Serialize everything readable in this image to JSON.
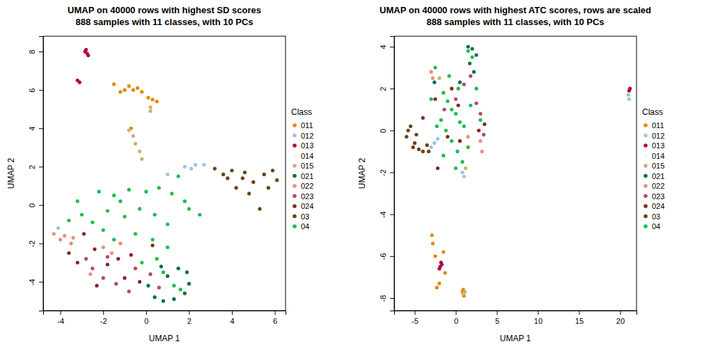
{
  "chart_data": [
    {
      "type": "scatter",
      "title": "UMAP on 40000 rows with highest SD scores",
      "subtitle": "888 samples with 11 classes, with 10 PCs",
      "x_label": "UMAP 1",
      "y_label": "UMAP 2",
      "legend_title": "Class",
      "legend": "right",
      "xlim": [
        -4.8,
        6.5
      ],
      "xticks": [
        -4,
        -2,
        0,
        2,
        4,
        6
      ],
      "ylim": [
        -5.5,
        8.8
      ],
      "yticks": [
        -4,
        -2,
        0,
        2,
        4,
        6,
        8
      ],
      "series": [
        {
          "name": "011",
          "color": "#E6870E",
          "x": [
            -1.2,
            -0.8,
            -0.6,
            -0.4,
            -0.2,
            0.1,
            0.3,
            0.5,
            -1.0,
            -1.5,
            -0.7
          ],
          "values": [
            5.9,
            6.2,
            6.0,
            6.1,
            5.9,
            5.6,
            5.5,
            5.4,
            6.0,
            6.3,
            4.0
          ]
        },
        {
          "name": "012",
          "color": "#9DC3E6",
          "x": [
            1.8,
            2.3,
            2.7,
            1.0,
            -4.1,
            2.1
          ],
          "values": [
            2.0,
            2.1,
            2.1,
            1.6,
            -1.2,
            1.9
          ]
        },
        {
          "name": "013",
          "color": "#B5063F",
          "x": [
            -2.8,
            -2.75,
            -2.7,
            -2.85,
            -3.2,
            -3.1
          ],
          "values": [
            8.1,
            7.9,
            7.8,
            8.0,
            6.5,
            6.4
          ]
        },
        {
          "name": "014",
          "color": "#F4F4F4",
          "x": [],
          "values": []
        },
        {
          "name": "015",
          "color": "#C8B273",
          "x": [
            0.2,
            0.2,
            -0.6,
            -0.5,
            -0.3,
            -0.2,
            -0.8
          ],
          "values": [
            5.1,
            4.9,
            3.6,
            3.2,
            2.8,
            2.4,
            3.9
          ]
        },
        {
          "name": "021",
          "color": "#00704A",
          "x": [
            0.4,
            0.8,
            1.3,
            1.8,
            2.0,
            1.9,
            1.5,
            1.0,
            0.1,
            0.7
          ],
          "values": [
            -4.8,
            -5.0,
            -4.9,
            -4.6,
            -4.1,
            -3.5,
            -3.3,
            -3.7,
            -4.2,
            -3.2
          ]
        },
        {
          "name": "022",
          "color": "#F08C7A",
          "x": [
            -4.3,
            -4.0,
            -3.8,
            -3.4,
            -3.5,
            -2.0,
            -1.6,
            -2.6,
            -1.2
          ],
          "values": [
            -1.5,
            -1.8,
            -1.6,
            -1.7,
            -2.0,
            -2.2,
            -2.5,
            -3.6,
            -2.0
          ]
        },
        {
          "name": "023",
          "color": "#B5496E",
          "x": [
            -2.5,
            -2.0,
            -1.4,
            -0.8,
            0.2,
            -0.5,
            -2.8,
            0.6,
            -1.8
          ],
          "values": [
            -3.3,
            -3.8,
            -4.1,
            -4.5,
            -3.6,
            -3.3,
            -2.8,
            -4.3,
            -2.7
          ]
        },
        {
          "name": "024",
          "color": "#7F2A1A",
          "x": [
            -3.6,
            -3.2,
            -2.9,
            -2.4,
            -1.8,
            -1.3,
            -0.7,
            -2.3,
            -1.0,
            0.3,
            -0.3
          ],
          "values": [
            -2.5,
            -3.0,
            -1.5,
            -2.3,
            -3.1,
            -2.8,
            -2.6,
            -4.2,
            -3.8,
            -2.1,
            -4.0
          ]
        },
        {
          "name": "03",
          "color": "#6B4215",
          "x": [
            3.2,
            3.6,
            4.0,
            4.5,
            5.0,
            5.5,
            5.9,
            6.1,
            4.8,
            5.3,
            4.2,
            3.8,
            5.7,
            4.6
          ],
          "values": [
            1.9,
            1.6,
            1.8,
            1.4,
            1.2,
            1.6,
            1.8,
            1.3,
            0.6,
            -0.2,
            0.9,
            1.4,
            0.9,
            1.7
          ]
        },
        {
          "name": "04",
          "color": "#17BF4B",
          "x": [
            -2.2,
            -1.5,
            -0.8,
            0.0,
            0.6,
            1.2,
            1.8,
            2.5,
            -3.0,
            -2.5,
            -1.8,
            -1.0,
            -0.3,
            0.4,
            1.0,
            -1.5,
            -0.5,
            0.3,
            1.0,
            -2.0,
            0.8,
            1.3,
            1.6,
            -3.6,
            -3.2,
            -0.2,
            0.5,
            -1.2,
            2.0,
            1.5
          ],
          "values": [
            0.7,
            0.5,
            0.8,
            0.7,
            0.9,
            0.6,
            0.2,
            -0.5,
            -0.5,
            -0.9,
            -0.3,
            -0.6,
            -0.2,
            -0.5,
            -1.0,
            -1.8,
            -1.5,
            -1.8,
            -2.2,
            -1.3,
            -3.5,
            -4.2,
            -4.4,
            -0.8,
            0.2,
            -3.0,
            -2.8,
            0.2,
            -0.2,
            1.5
          ]
        }
      ]
    },
    {
      "type": "scatter",
      "title": "UMAP on 40000 rows with highest ATC scores, rows are scaled",
      "subtitle": "888 samples with 11 classes, with 10 PCs",
      "x_label": "UMAP 1",
      "y_label": "UMAP 2",
      "legend_title": "Class",
      "legend": "right",
      "xlim": [
        -7.5,
        22
      ],
      "xticks": [
        -5,
        0,
        5,
        10,
        15,
        20
      ],
      "ylim": [
        -8.6,
        4.5
      ],
      "yticks": [
        -8,
        -6,
        -4,
        -2,
        0,
        2,
        4
      ],
      "series": [
        {
          "name": "011",
          "color": "#E6870E",
          "x": [
            -2.9,
            -2.8,
            -2.5,
            -1.5,
            -1.3,
            -2.0,
            -2.3,
            0.8,
            1.0,
            0.9
          ],
          "values": [
            -5.0,
            -5.4,
            -6.0,
            -5.8,
            -6.8,
            -7.3,
            -7.5,
            -7.7,
            -7.9,
            -7.6
          ]
        },
        {
          "name": "012",
          "color": "#9DC3E6",
          "x": [
            21.0,
            21.1,
            -2.6,
            -3.0,
            -2.2,
            0.8,
            1.0
          ],
          "values": [
            1.7,
            1.5,
            -0.6,
            -0.8,
            -0.4,
            -2.0,
            -2.2
          ]
        },
        {
          "name": "013",
          "color": "#B5063F",
          "x": [
            21.2,
            21.1,
            -1.8,
            -1.9,
            -2.0,
            -1.7
          ],
          "values": [
            2.0,
            1.9,
            -6.3,
            -6.5,
            -6.6,
            -6.4
          ]
        },
        {
          "name": "014",
          "color": "#F4F4F4",
          "x": [],
          "values": []
        },
        {
          "name": "015",
          "color": "#C8B273",
          "x": [
            0.9,
            1.1,
            1.2,
            -2.0
          ],
          "values": [
            -7.8,
            -7.7,
            -1.8,
            2.5
          ]
        },
        {
          "name": "021",
          "color": "#00704A",
          "x": [
            1.5,
            2.0,
            1.7,
            2.2,
            -2.6,
            0.5,
            2.5
          ],
          "values": [
            4.0,
            3.9,
            3.2,
            2.8,
            2.3,
            2.3,
            3.6
          ]
        },
        {
          "name": "022",
          "color": "#F08C7A",
          "x": [
            -3.0,
            -2.8,
            3.0,
            3.2,
            1.5
          ],
          "values": [
            2.8,
            2.5,
            -0.5,
            -1.0,
            -0.3
          ]
        },
        {
          "name": "023",
          "color": "#B5496E",
          "x": [
            1.0,
            1.8,
            2.5,
            3.0,
            3.4,
            0.0,
            -1.4
          ],
          "values": [
            2.2,
            2.6,
            1.3,
            0.8,
            -0.2,
            1.5,
            1.0
          ]
        },
        {
          "name": "024",
          "color": "#7F2A1A",
          "x": [
            -0.5,
            0.3,
            -2.5,
            2.8,
            3.5,
            -1.0,
            -4.0,
            -2.2,
            0.5
          ],
          "values": [
            2.0,
            1.2,
            1.5,
            0.0,
            0.3,
            -0.3,
            0.6,
            -1.8,
            -0.5
          ]
        },
        {
          "name": "03",
          "color": "#6B4215",
          "x": [
            -5.5,
            -6.0,
            -5.0,
            -4.5,
            -4.0,
            -3.5,
            -5.8,
            -4.8,
            -3.3,
            -5.2
          ],
          "values": [
            0.2,
            -0.3,
            -0.6,
            -0.9,
            -1.0,
            -0.7,
            0.0,
            -0.2,
            -1.0,
            -0.8
          ]
        },
        {
          "name": "04",
          "color": "#17BF4B",
          "x": [
            -1.5,
            -1.0,
            -0.5,
            0.0,
            0.5,
            1.0,
            -1.8,
            -1.2,
            -0.5,
            0.2,
            0.8,
            1.5,
            -2.3,
            -3.0,
            -2.5,
            1.5,
            2.0,
            2.5,
            3.0,
            0.0,
            -1.5,
            1.8,
            -0.8,
            0.3
          ],
          "values": [
            1.8,
            1.4,
            1.0,
            0.8,
            0.4,
            0.2,
            0.5,
            0.0,
            -0.5,
            -1.0,
            -1.5,
            -0.8,
            0.2,
            1.5,
            3.0,
            3.8,
            3.5,
            2.0,
            0.5,
            -1.8,
            -1.2,
            1.2,
            2.6,
            2.0
          ]
        }
      ]
    }
  ]
}
